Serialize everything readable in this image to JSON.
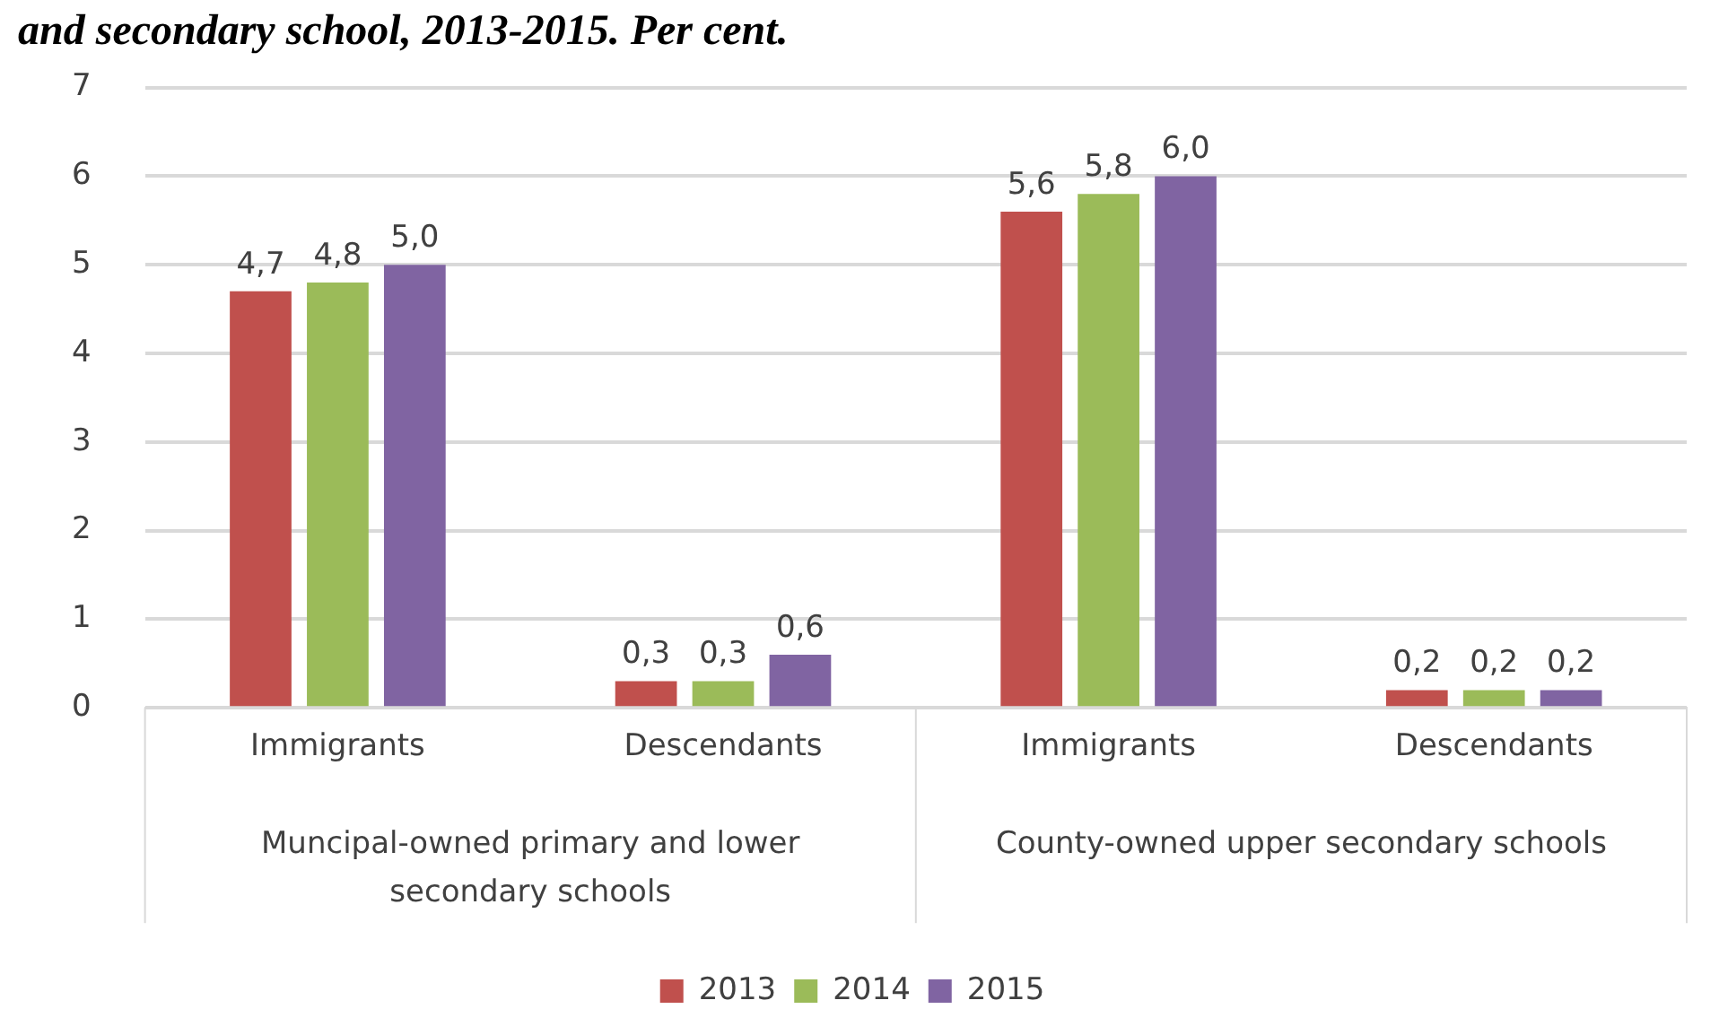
{
  "chart_data": {
    "type": "bar",
    "title": "and secondary school, 2013-2015. Per cent.",
    "categories": [
      "Immigrants",
      "Descendants",
      "Immigrants",
      "Descendants"
    ],
    "series": [
      {
        "name": "2013",
        "color": "#c0504d",
        "values": [
          4.7,
          0.3,
          5.6,
          0.2
        ],
        "value_labels": [
          "4,7",
          "0,3",
          "5,6",
          "0,2"
        ]
      },
      {
        "name": "2014",
        "color": "#9bbb59",
        "values": [
          4.8,
          0.3,
          5.8,
          0.2
        ],
        "value_labels": [
          "4,8",
          "0,3",
          "5,8",
          "0,2"
        ]
      },
      {
        "name": "2015",
        "color": "#8064a2",
        "values": [
          5.0,
          0.6,
          6.0,
          0.2
        ],
        "value_labels": [
          "5,0",
          "0,6",
          "6,0",
          "0,2"
        ]
      }
    ],
    "annotations": [
      "Muncipal-owned primary and lower\nsecondary schools",
      "County-owned upper secondary schools"
    ],
    "ylim": [
      0,
      7
    ],
    "yticks": [
      0,
      1,
      2,
      3,
      4,
      5,
      6,
      7
    ],
    "grid": "y",
    "legend": "bottom"
  }
}
